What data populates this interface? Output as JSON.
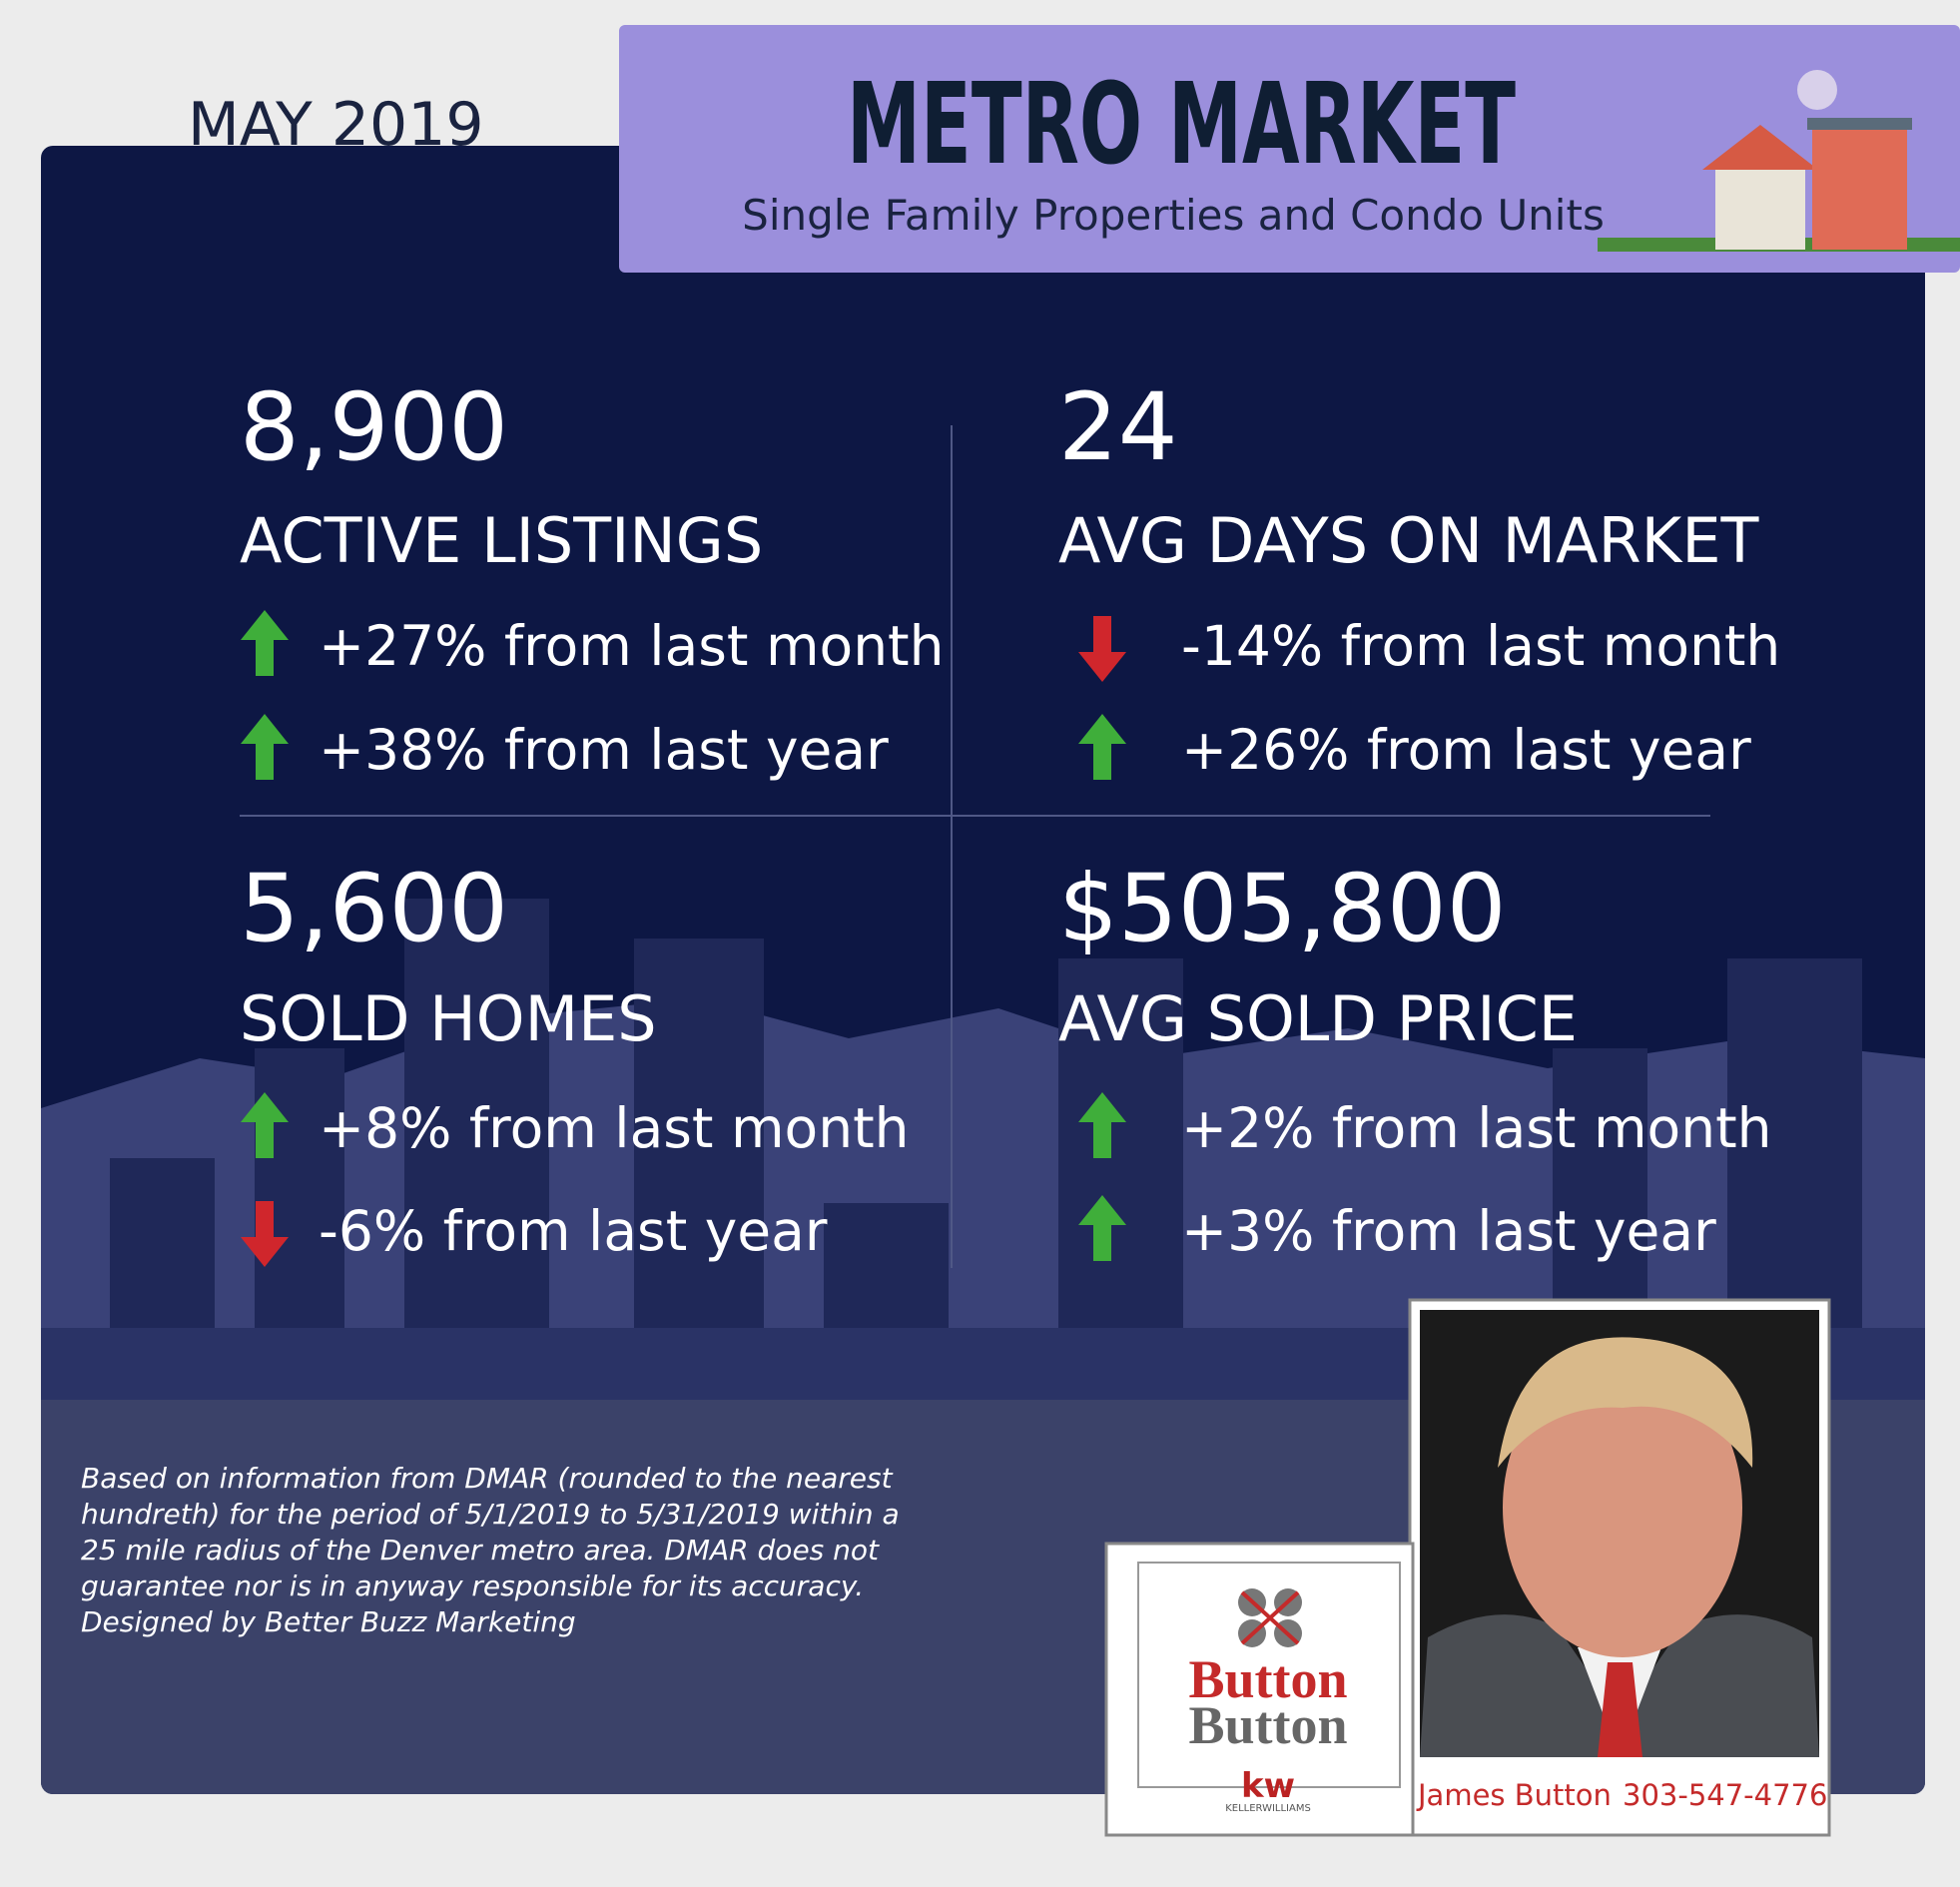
{
  "header": {
    "date": "MAY 2019",
    "title": "METRO MARKET",
    "subtitle": "Single Family Properties and Condo Units"
  },
  "stats": [
    {
      "value": "8,900",
      "label": "ACTIVE LISTINGS",
      "changes": [
        {
          "direction": "up",
          "text": "+27% from last month"
        },
        {
          "direction": "up",
          "text": "+38% from last year"
        }
      ]
    },
    {
      "value": "24",
      "label": "AVG DAYS ON MARKET",
      "changes": [
        {
          "direction": "down",
          "text": "-14% from last month"
        },
        {
          "direction": "up",
          "text": "+26% from last year"
        }
      ]
    },
    {
      "value": "5,600",
      "label": "SOLD HOMES",
      "changes": [
        {
          "direction": "up",
          "text": "+8% from last month"
        },
        {
          "direction": "down",
          "text": "-6% from last year"
        }
      ]
    },
    {
      "value": "$505,800",
      "label": "AVG SOLD PRICE",
      "changes": [
        {
          "direction": "up",
          "text": "+2% from last month"
        },
        {
          "direction": "up",
          "text": "+3% from last year"
        }
      ]
    }
  ],
  "footnote": [
    "Based on information from DMAR (rounded to the nearest",
    "hundreth) for the period of 5/1/2019 to 5/31/2019 within a",
    "25 mile radius of the Denver metro area. DMAR does not",
    "guarantee nor is in anyway responsible for its accuracy.",
    "Designed by Better Buzz Marketing"
  ],
  "agent": {
    "logo_lines": [
      "Button",
      "Button"
    ],
    "brokerage": "kw",
    "brokerage_name": "KELLERWILLIAMS",
    "name": "James Button",
    "phone": "303-547-4776"
  }
}
